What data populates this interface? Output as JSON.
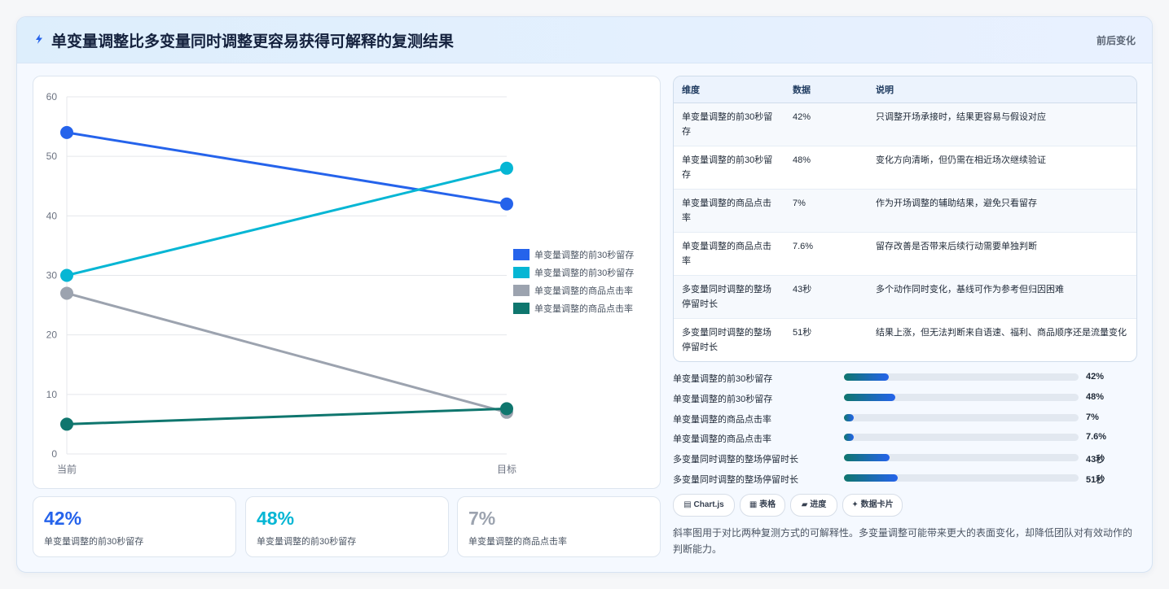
{
  "header": {
    "title": "单变量调整比多变量同时调整更容易获得可解释的复测结果",
    "tag": "前后变化",
    "icon": "lightning-icon"
  },
  "chart_data": {
    "type": "line",
    "categories": [
      "当前",
      "目标"
    ],
    "ylim": [
      0,
      60
    ],
    "yticks": [
      0,
      10,
      20,
      30,
      40,
      50,
      60
    ],
    "grid": true,
    "legend_position": "right",
    "series": [
      {
        "name": "单变量调整的前30秒留存",
        "values": [
          54,
          42
        ],
        "color": "#2563eb"
      },
      {
        "name": "单变量调整的前30秒留存",
        "values": [
          30,
          48
        ],
        "color": "#06b6d4"
      },
      {
        "name": "单变量调整的商品点击率",
        "values": [
          27,
          7
        ],
        "color": "#9ca3af"
      },
      {
        "name": "单变量调整的商品点击率",
        "values": [
          5,
          7.6
        ],
        "color": "#0f766e"
      }
    ]
  },
  "kpis": [
    {
      "value": "42%",
      "label": "单变量调整的前30秒留存",
      "color": "#2563eb"
    },
    {
      "value": "48%",
      "label": "单变量调整的前30秒留存",
      "color": "#06b6d4"
    },
    {
      "value": "7%",
      "label": "单变量调整的商品点击率",
      "color": "#9ca3af"
    }
  ],
  "table": {
    "headers": [
      "维度",
      "数据",
      "说明"
    ],
    "rows": [
      {
        "dim": "单变量调整的前30秒留存",
        "data": "42%",
        "desc": "只调整开场承接时，结果更容易与假设对应"
      },
      {
        "dim": "单变量调整的前30秒留存",
        "data": "48%",
        "desc": "变化方向清晰，但仍需在相近场次继续验证"
      },
      {
        "dim": "单变量调整的商品点击率",
        "data": "7%",
        "desc": "作为开场调整的辅助结果，避免只看留存"
      },
      {
        "dim": "单变量调整的商品点击率",
        "data": "7.6%",
        "desc": "留存改善是否带来后续行动需要单独判断"
      },
      {
        "dim": "多变量同时调整的整场停留时长",
        "data": "43秒",
        "desc": "多个动作同时变化，基线可作为参考但归因困难"
      },
      {
        "dim": "多变量同时调整的整场停留时长",
        "data": "51秒",
        "desc": "结果上涨，但无法判断来自语速、福利、商品顺序还是流量变化"
      }
    ]
  },
  "progress": [
    {
      "label": "单变量调整的前30秒留存",
      "value": "42%",
      "fraction": 0.19
    },
    {
      "label": "单变量调整的前30秒留存",
      "value": "48%",
      "fraction": 0.22
    },
    {
      "label": "单变量调整的商品点击率",
      "value": "7%",
      "fraction": 0.04
    },
    {
      "label": "单变量调整的商品点击率",
      "value": "7.6%",
      "fraction": 0.04
    },
    {
      "label": "多变量同时调整的整场停留时长",
      "value": "43秒",
      "fraction": 0.195
    },
    {
      "label": "多变量同时调整的整场停留时长",
      "value": "51秒",
      "fraction": 0.23
    }
  ],
  "chips": [
    {
      "icon": "chart-icon",
      "glyph": "▤",
      "label": "Chart.js"
    },
    {
      "icon": "table-icon",
      "glyph": "▦",
      "label": "表格"
    },
    {
      "icon": "progress-icon",
      "glyph": "▰",
      "label": "进度"
    },
    {
      "icon": "sparkle-icon",
      "glyph": "✦",
      "label": "数据卡片"
    }
  ],
  "note": "斜率图用于对比两种复测方式的可解释性。多变量调整可能带来更大的表面变化，却降低团队对有效动作的判断能力。"
}
